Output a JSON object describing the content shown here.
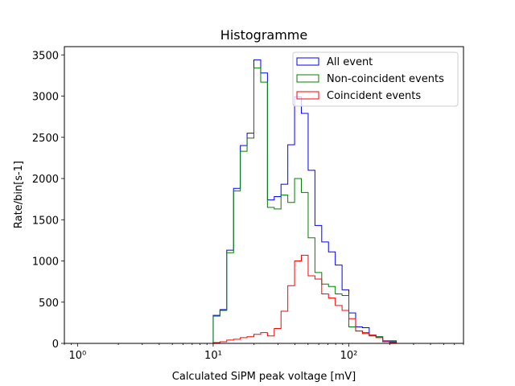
{
  "chart_data": {
    "type": "histogram-step",
    "title": "Histogramme",
    "xlabel": "Calculated SiPM peak voltage [mV]",
    "ylabel": "Rate/bin[s-1]",
    "xscale": "log",
    "xlim": [
      0.8,
      700
    ],
    "ylim": [
      0,
      3600
    ],
    "xticks": [
      {
        "value": 1,
        "label": "10⁰"
      },
      {
        "value": 10,
        "label": "10¹"
      },
      {
        "value": 100,
        "label": "10²"
      }
    ],
    "yticks": [
      0,
      500,
      1000,
      1500,
      2000,
      2500,
      3000,
      3500
    ],
    "grid": false,
    "legend_position": "top-right",
    "bin_edges": [
      1.0,
      1.122,
      1.259,
      1.413,
      1.585,
      1.778,
      1.995,
      2.239,
      2.512,
      2.818,
      3.162,
      3.548,
      3.981,
      4.467,
      5.012,
      5.623,
      6.31,
      7.079,
      7.943,
      8.913,
      10.0,
      11.22,
      12.59,
      14.13,
      15.85,
      17.78,
      19.95,
      22.39,
      25.12,
      28.18,
      31.62,
      35.48,
      39.81,
      44.67,
      50.12,
      56.23,
      63.1,
      70.79,
      79.43,
      89.13,
      100.0,
      112.2,
      125.9,
      141.3,
      158.5,
      177.8,
      199.5,
      223.9,
      251.2,
      281.8,
      316.2,
      354.8,
      398.1,
      446.7,
      501.2
    ],
    "series": [
      {
        "name": "All event",
        "color": "#0000ff",
        "values": [
          0,
          0,
          0,
          0,
          0,
          0,
          0,
          0,
          0,
          0,
          0,
          0,
          0,
          0,
          0,
          0,
          0,
          0,
          0,
          0,
          340,
          410,
          1130,
          1880,
          2400,
          2550,
          3440,
          3280,
          1740,
          1780,
          1930,
          2410,
          2990,
          2790,
          2100,
          1430,
          1230,
          1110,
          950,
          650,
          370,
          200,
          190,
          100,
          80,
          30,
          30,
          0,
          0,
          0,
          0,
          0,
          0,
          0
        ]
      },
      {
        "name": "Non-coincident events",
        "color": "#008000",
        "values": [
          0,
          0,
          0,
          0,
          0,
          0,
          0,
          0,
          0,
          0,
          0,
          0,
          0,
          0,
          0,
          0,
          0,
          0,
          0,
          0,
          330,
          400,
          1100,
          1850,
          2330,
          2490,
          3340,
          3170,
          1650,
          1630,
          1800,
          1710,
          2000,
          1830,
          1280,
          860,
          720,
          690,
          600,
          580,
          200,
          150,
          130,
          90,
          80,
          20,
          20,
          0,
          0,
          0,
          0,
          0,
          0,
          0
        ]
      },
      {
        "name": "Coincident events",
        "color": "#ff0000",
        "values": [
          0,
          0,
          0,
          0,
          0,
          0,
          0,
          0,
          0,
          0,
          0,
          0,
          0,
          0,
          0,
          0,
          0,
          0,
          0,
          0,
          10,
          20,
          40,
          50,
          70,
          80,
          110,
          130,
          90,
          180,
          390,
          700,
          1000,
          1070,
          820,
          780,
          600,
          550,
          460,
          400,
          300,
          150,
          120,
          100,
          70,
          20,
          10,
          0,
          0,
          0,
          0,
          0,
          0,
          0
        ]
      }
    ]
  }
}
